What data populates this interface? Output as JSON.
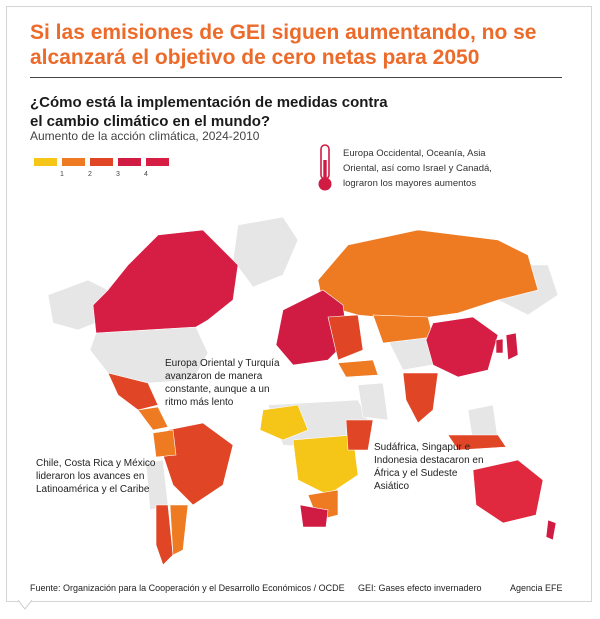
{
  "headline": "Si las emisiones de GEI siguen aumentando, no se alcanzará el objetivo de cero netas para 2050",
  "subtitle": "¿Cómo está la implementación de medidas contra el cambio climático en el mundo?",
  "caption": "Aumento de la acción climática, 2024-2010",
  "legend": {
    "ticks": [
      "1",
      "2",
      "3",
      "4"
    ],
    "colors": [
      "#f5c518",
      "#ee7a22",
      "#e04626",
      "#d01c43",
      "#d61e45"
    ]
  },
  "thermometer": {
    "icon": "thermometer-icon",
    "note": "Europa Occidental, Oceanía, Asia Oriental, así como Israel y Canadá, lograron los mayores aumentos"
  },
  "map": {
    "land_color": "#e6e6e6",
    "annotations": {
      "europe": "Europa Oriental y Turquía avanzaron de manera constante, aunque a un ritmo más lento",
      "latam": "Chile, Costa Rica y México lideraron los avances en Latinoamérica y el Caribe",
      "africa": "Sudáfrica, Singapur e Indonesia destacaron en África y el Sudeste Asiático"
    }
  },
  "footer": {
    "source": "Fuente: Organización para la Cooperación y el Desarrollo Económicos / OCDE",
    "gei": "GEI: Gases efecto invernadero",
    "agency": "Agencia EFE"
  }
}
